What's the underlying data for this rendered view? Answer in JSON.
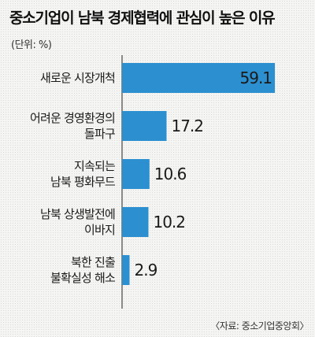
{
  "title": "중소기업이 남북 경제협력에 관심이 높은 이유",
  "unit": "(단위: %)",
  "source": "〈자료: 중소기업중앙회〉",
  "colors": {
    "bar": "#2b8fd0",
    "axis": "#222222"
  },
  "chart_data": {
    "type": "bar",
    "orientation": "horizontal",
    "categories": [
      [
        "새로운 시장개척"
      ],
      [
        "어려운 경영환경의",
        "돌파구"
      ],
      [
        "지속되는",
        "남북 평화무드"
      ],
      [
        "남북 상생발전에",
        "이바지"
      ],
      [
        "북한 진출",
        "불확실성 해소"
      ]
    ],
    "values": [
      59.1,
      17.2,
      10.6,
      10.2,
      2.9
    ],
    "value_labels": [
      "59.1",
      "17.2",
      "10.6",
      "10.2",
      "2.9"
    ],
    "xlim": [
      0,
      60
    ],
    "grid": false,
    "legend": "none"
  }
}
